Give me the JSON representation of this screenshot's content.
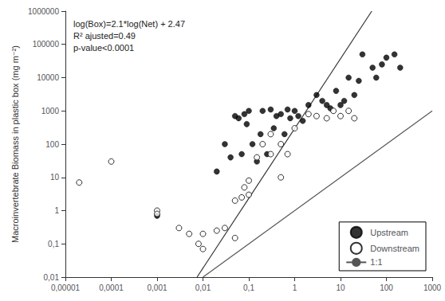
{
  "chart_data": {
    "type": "scatter",
    "ylabel": "Macroinvertebrate Biomass in plastic box (mg m⁻²)",
    "annotation": "log(Box)=2.1*log(Net) + 2.47\nR² ajusted=0.49\np-value<0.0001",
    "log": true,
    "grid": false,
    "legend": "lower right",
    "xlim": [
      1e-05,
      1000
    ],
    "ylim": [
      0.01,
      1000000
    ],
    "xticks": [
      {
        "value": 1e-05,
        "label": "0,00001"
      },
      {
        "value": 0.0001,
        "label": "0,0001"
      },
      {
        "value": 0.001,
        "label": "0,001"
      },
      {
        "value": 0.01,
        "label": "0,01"
      },
      {
        "value": 0.1,
        "label": "0,1"
      },
      1,
      10,
      100,
      1000
    ],
    "yticks": [
      {
        "value": 0.01,
        "label": "0,01"
      },
      {
        "value": 0.1,
        "label": "0,1"
      },
      1,
      10,
      100,
      1000,
      10000,
      100000,
      1000000
    ],
    "series": [
      {
        "name": "Upstream",
        "type": "scatter",
        "marker": "filled circle",
        "color": "#000000",
        "x": [
          0.001,
          0.02,
          0.03,
          0.04,
          0.05,
          0.06,
          0.07,
          0.08,
          0.09,
          0.1,
          0.12,
          0.15,
          0.18,
          0.2,
          0.25,
          0.3,
          0.35,
          0.4,
          0.5,
          0.6,
          0.7,
          0.8,
          1.0,
          1.2,
          1.5,
          2.0,
          3.0,
          4.0,
          5.0,
          6.0,
          8.0,
          10,
          12,
          15,
          20,
          25,
          30,
          50,
          60,
          80,
          100,
          150,
          200
        ],
        "values": [
          0.7,
          15,
          100,
          40,
          700,
          600,
          50,
          800,
          400,
          1000,
          100,
          30,
          200,
          1000,
          50,
          1100,
          300,
          700,
          800,
          200,
          1100,
          600,
          1000,
          700,
          500,
          1500,
          3000,
          2000,
          1500,
          1200,
          4000,
          1500,
          2000,
          10000,
          3000,
          8000,
          50000,
          20000,
          10000,
          25000,
          40000,
          50000,
          20000
        ]
      },
      {
        "name": "Downstream",
        "type": "scatter",
        "marker": "open circle",
        "color": "#000000",
        "x": [
          2e-05,
          0.0001,
          0.001,
          0.001,
          0.003,
          0.005,
          0.008,
          0.01,
          0.01,
          0.02,
          0.03,
          0.05,
          0.05,
          0.07,
          0.08,
          0.1,
          0.1,
          0.15,
          0.2,
          0.3,
          0.3,
          0.5,
          0.5,
          0.7,
          1.0,
          2.0,
          3.0,
          5.0,
          7.0,
          10,
          15,
          20
        ],
        "values": [
          7,
          30,
          1,
          0.8,
          0.3,
          0.2,
          0.1,
          0.07,
          0.2,
          0.25,
          0.3,
          2,
          0.15,
          2.5,
          5,
          3,
          8,
          40,
          100,
          50,
          200,
          10,
          100,
          50,
          300,
          800,
          700,
          600,
          1000,
          700,
          1000,
          600
        ]
      },
      {
        "name": "1:1",
        "type": "line",
        "color": "#555555",
        "x": [
          0.01,
          1000
        ],
        "values": [
          0.01,
          1000
        ]
      },
      {
        "type": "line",
        "color": "#333333",
        "x": [
          0.0074375,
          47.968
        ],
        "values": [
          0.01,
          1000000
        ]
      }
    ]
  }
}
